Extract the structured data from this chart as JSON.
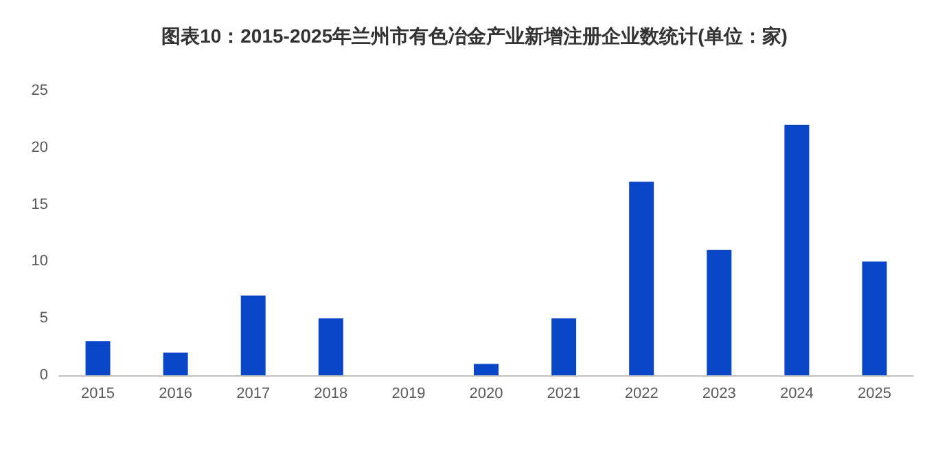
{
  "chart_data": {
    "type": "bar",
    "title": "图表10：2015-2025年兰州市有色冶金产业新增注册企业数统计(单位：家)",
    "categories": [
      "2015",
      "2016",
      "2017",
      "2018",
      "2019",
      "2020",
      "2021",
      "2022",
      "2023",
      "2024",
      "2025"
    ],
    "values": [
      3,
      2,
      7,
      5,
      0,
      1,
      5,
      17,
      11,
      22,
      10
    ],
    "color": "#0a46c8",
    "ylim": [
      0,
      25
    ],
    "yticks": [
      0,
      5,
      10,
      15,
      20,
      25
    ],
    "grid": false
  }
}
